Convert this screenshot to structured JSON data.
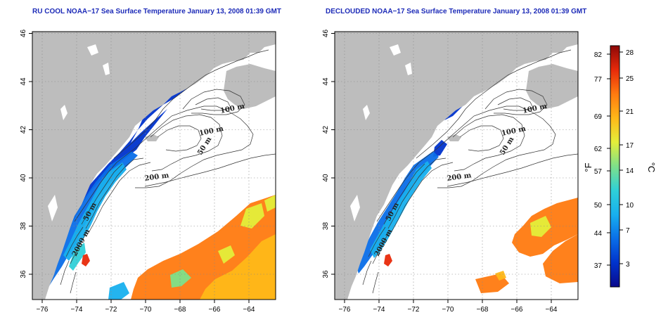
{
  "panels": [
    {
      "title": "RU COOL NOAA−17 Sea Surface Temperature January 13, 2008 01:39 GMT",
      "mode": "full"
    },
    {
      "title": "DECLOUDED NOAA−17 Sea Surface Temperature January 13, 2008 01:39 GMT",
      "mode": "declouded"
    }
  ],
  "axes": {
    "lon_ticks": [
      "−76",
      "−74",
      "−72",
      "−70",
      "−68",
      "−66",
      "−64"
    ],
    "lat_ticks": [
      "36",
      "38",
      "40",
      "42",
      "44",
      "46"
    ]
  },
  "contours": {
    "labels_left": [
      "100 m",
      "100 m",
      "50 m",
      "200 m",
      "50 m",
      "2000 m"
    ],
    "labels_right": [
      "100 m",
      "100 m",
      "50 m",
      "200 m",
      "50 m",
      "2000 m"
    ]
  },
  "colorbar": {
    "fahrenheit_ticks": [
      "82",
      "77",
      "69",
      "62",
      "57",
      "50",
      "44",
      "37"
    ],
    "celsius_ticks": [
      "28",
      "25",
      "21",
      "17",
      "14",
      "10",
      "7",
      "3"
    ],
    "unit_f": "°F",
    "unit_c": "°C",
    "colors": [
      "#0a0a8c",
      "#0033cc",
      "#0a6ee8",
      "#18b0ee",
      "#2fd0d8",
      "#7ee08a",
      "#e4ee3a",
      "#ffb818",
      "#ff7a10",
      "#e82a0a",
      "#8c0808"
    ]
  },
  "colors": {
    "land": "#bdbdbd",
    "ocean_cloud": "#ffffff",
    "title": "#1d2bb8"
  }
}
